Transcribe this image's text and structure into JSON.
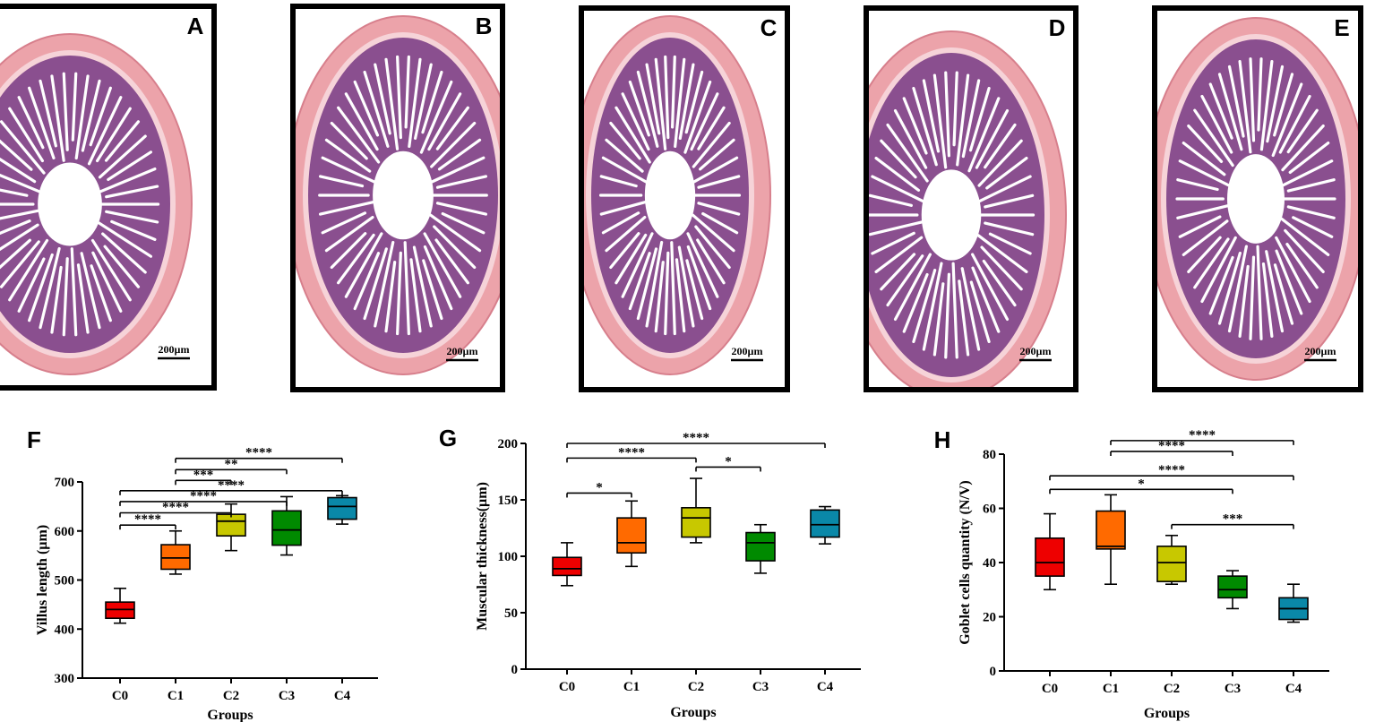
{
  "micrographs": [
    {
      "letter": "A",
      "scale_label": "200µm"
    },
    {
      "letter": "B",
      "scale_label": "200µm"
    },
    {
      "letter": "C",
      "scale_label": "200µm"
    },
    {
      "letter": "D",
      "scale_label": "200µm"
    },
    {
      "letter": "E",
      "scale_label": "200µm"
    }
  ],
  "colors": [
    "#ee0000",
    "#ff6a00",
    "#c8c800",
    "#008a00",
    "#0a88a8"
  ],
  "chart_data": [
    {
      "panel": "F",
      "type": "box",
      "xlabel": "Groups",
      "ylabel": "Villus length (µm)",
      "categories": [
        "C0",
        "C1",
        "C2",
        "C3",
        "C4"
      ],
      "ylim": [
        300,
        700
      ],
      "yticks": [
        300,
        400,
        500,
        600,
        700
      ],
      "boxes": [
        {
          "min": 412,
          "q1": 422,
          "median": 440,
          "q3": 455,
          "max": 483
        },
        {
          "min": 512,
          "q1": 522,
          "median": 545,
          "q3": 572,
          "max": 600
        },
        {
          "min": 560,
          "q1": 590,
          "median": 620,
          "q3": 634,
          "max": 655
        },
        {
          "min": 551,
          "q1": 571,
          "median": 602,
          "q3": 641,
          "max": 670
        },
        {
          "min": 614,
          "q1": 624,
          "median": 650,
          "q3": 668,
          "max": 672
        }
      ],
      "significance": [
        {
          "from": 0,
          "to": 1,
          "label": "****",
          "y": 612
        },
        {
          "from": 0,
          "to": 2,
          "label": "****",
          "y": 637
        },
        {
          "from": 0,
          "to": 3,
          "label": "****",
          "y": 660
        },
        {
          "from": 0,
          "to": 4,
          "label": "****",
          "y": 682
        },
        {
          "from": 1,
          "to": 2,
          "label": "***",
          "y": 703
        },
        {
          "from": 1,
          "to": 3,
          "label": "**",
          "y": 725
        },
        {
          "from": 1,
          "to": 4,
          "label": "****",
          "y": 748
        }
      ]
    },
    {
      "panel": "G",
      "type": "box",
      "xlabel": "Groups",
      "ylabel": "Muscular thickness(µm)",
      "categories": [
        "C0",
        "C1",
        "C2",
        "C3",
        "C4"
      ],
      "ylim": [
        0,
        200
      ],
      "yticks": [
        0,
        50,
        100,
        150,
        200
      ],
      "boxes": [
        {
          "min": 74,
          "q1": 83,
          "median": 89,
          "q3": 99,
          "max": 112
        },
        {
          "min": 91,
          "q1": 103,
          "median": 112,
          "q3": 134,
          "max": 149
        },
        {
          "min": 112,
          "q1": 117,
          "median": 134,
          "q3": 143,
          "max": 169
        },
        {
          "min": 85,
          "q1": 96,
          "median": 112,
          "q3": 121,
          "max": 128
        },
        {
          "min": 111,
          "q1": 117,
          "median": 128,
          "q3": 141,
          "max": 144
        }
      ],
      "significance": [
        {
          "from": 0,
          "to": 1,
          "label": "*",
          "y": 156
        },
        {
          "from": 2,
          "to": 3,
          "label": "*",
          "y": 179
        },
        {
          "from": 0,
          "to": 2,
          "label": "****",
          "y": 187
        },
        {
          "from": 0,
          "to": 4,
          "label": "****",
          "y": 200
        }
      ]
    },
    {
      "panel": "H",
      "type": "box",
      "xlabel": "Groups",
      "ylabel": "Goblet cells quantity (N/V)",
      "categories": [
        "C0",
        "C1",
        "C2",
        "C3",
        "C4"
      ],
      "ylim": [
        0,
        80
      ],
      "yticks": [
        0,
        20,
        40,
        60,
        80
      ],
      "boxes": [
        {
          "min": 30,
          "q1": 35,
          "median": 40,
          "q3": 49,
          "max": 58
        },
        {
          "min": 32,
          "q1": 45,
          "median": 46,
          "q3": 59,
          "max": 65
        },
        {
          "min": 32,
          "q1": 33,
          "median": 40,
          "q3": 46,
          "max": 50
        },
        {
          "min": 23,
          "q1": 27,
          "median": 30,
          "q3": 35,
          "max": 37
        },
        {
          "min": 18,
          "q1": 19,
          "median": 23,
          "q3": 27,
          "max": 32
        }
      ],
      "significance": [
        {
          "from": 2,
          "to": 4,
          "label": "***",
          "y": 54
        },
        {
          "from": 0,
          "to": 3,
          "label": "*",
          "y": 67
        },
        {
          "from": 0,
          "to": 4,
          "label": "****",
          "y": 72
        },
        {
          "from": 1,
          "to": 3,
          "label": "****",
          "y": 81
        },
        {
          "from": 1,
          "to": 4,
          "label": "****",
          "y": 85
        }
      ]
    }
  ]
}
